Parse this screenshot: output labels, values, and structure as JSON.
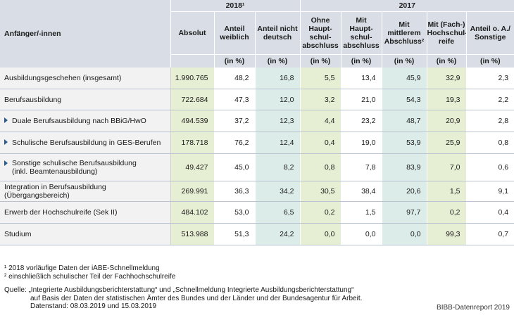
{
  "header": {
    "year_2018": "2018¹",
    "year_2017": "2017",
    "row_label": "Anfänger/-innen",
    "columns": [
      "Absolut",
      "Anteil weiblich",
      "Anteil nicht deutsch",
      "Ohne Haupt-schul-abschluss",
      "Mit Haupt-schul-abschluss",
      "Mit mittlerem Abschluss²",
      "Mit (Fach-) Hochschul-reife",
      "Anteil o. A./ Sonstige"
    ],
    "unit": "(in %)"
  },
  "rows": [
    {
      "label": "Ausbildungsgeschehen (insgesamt)",
      "values": [
        "1.990.765",
        "48,2",
        "16,8",
        "5,5",
        "13,4",
        "45,9",
        "32,9",
        "2,3"
      ]
    },
    {
      "label": "Berufsausbildung",
      "values": [
        "722.684",
        "47,3",
        "12,0",
        "3,2",
        "21,0",
        "54,3",
        "19,3",
        "2,2"
      ]
    },
    {
      "label": "Duale Berufsausbildung nach BBiG/HwO",
      "values": [
        "494.539",
        "37,2",
        "12,3",
        "4,4",
        "23,2",
        "48,7",
        "20,9",
        "2,8"
      ]
    },
    {
      "label": "Schulische Berufsausbildung in GES-Berufen",
      "values": [
        "178.718",
        "76,2",
        "12,4",
        "0,4",
        "19,0",
        "53,9",
        "25,9",
        "0,8"
      ]
    },
    {
      "label": "Sonstige schulische Berufsausbildung",
      "label2": "(inkl. Beamtenausbildung)",
      "values": [
        "49.427",
        "45,0",
        "8,2",
        "0,8",
        "7,8",
        "83,9",
        "7,0",
        "0,6"
      ]
    },
    {
      "label": "Integration in Berufsausbildung (Übergangsbereich)",
      "values": [
        "269.991",
        "36,3",
        "34,2",
        "30,5",
        "38,4",
        "20,6",
        "1,5",
        "9,1"
      ]
    },
    {
      "label": "Erwerb der Hochschulreife (Sek II)",
      "values": [
        "484.102",
        "53,0",
        "6,5",
        "0,2",
        "1,5",
        "97,7",
        "0,2",
        "0,4"
      ]
    },
    {
      "label": "Studium",
      "values": [
        "513.988",
        "51,3",
        "24,2",
        "0,0",
        "0,0",
        "0,0",
        "99,3",
        "0,7"
      ]
    }
  ],
  "notes": [
    "¹ 2018 vorläufige Daten der iABE-Schnellmeldung",
    "² einschließlich schulischer Teil der Fachhochschulreife"
  ],
  "source": [
    "Quelle: „Integrierte Ausbildungsberichterstattung“ und „Schnellmeldung Integrierte Ausbildungsberichterstattung“",
    "auf Basis der Daten der statistischen Ämter des Bundes und der Länder und der Bundesagentur für Arbeit.",
    "Datenstand: 08.03.2019 und 15.03.2019"
  ],
  "credit": "BIBB-Datenreport 2019",
  "colors": {
    "header": "#d9dee6",
    "green": "#e6eed3",
    "teal": "#dbece9",
    "grey": "#f2f2f2",
    "triangle": "#2e5a8a"
  }
}
